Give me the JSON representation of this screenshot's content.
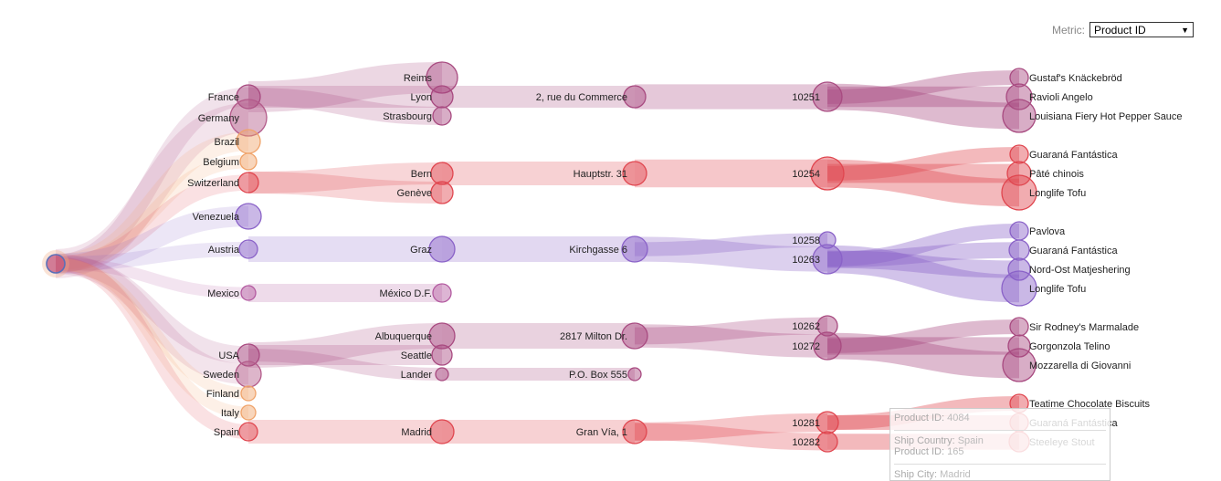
{
  "metric": {
    "label": "Metric:",
    "selected": "Product ID"
  },
  "colors": {
    "purple": "#8a62c8",
    "red": "#e0464f",
    "orange": "#f0a36a",
    "plum": "#a84a80"
  },
  "tree": {
    "countries": [
      {
        "name": "France",
        "color": "#a84a80"
      },
      {
        "name": "Germany",
        "color": "#b35a8a"
      },
      {
        "name": "Brazil",
        "color": "#f0a36a"
      },
      {
        "name": "Belgium",
        "color": "#f0a36a"
      },
      {
        "name": "Switzerland",
        "color": "#e0464f"
      },
      {
        "name": "Venezuela",
        "color": "#8a62c8"
      },
      {
        "name": "Austria",
        "color": "#8a62c8"
      },
      {
        "name": "Mexico",
        "color": "#b35aa0"
      },
      {
        "name": "USA",
        "color": "#a84a80"
      },
      {
        "name": "Sweden",
        "color": "#b35a8a"
      },
      {
        "name": "Finland",
        "color": "#f0a36a"
      },
      {
        "name": "Italy",
        "color": "#f0a36a"
      },
      {
        "name": "Spain",
        "color": "#e0464f"
      }
    ],
    "cities": [
      {
        "name": "Reims",
        "country": "France"
      },
      {
        "name": "Lyon",
        "country": "France"
      },
      {
        "name": "Strasbourg",
        "country": "France"
      },
      {
        "name": "Bern",
        "country": "Switzerland"
      },
      {
        "name": "Genève",
        "country": "Switzerland"
      },
      {
        "name": "Graz",
        "country": "Austria"
      },
      {
        "name": "México D.F.",
        "country": "Mexico"
      },
      {
        "name": "Albuquerque",
        "country": "USA"
      },
      {
        "name": "Seattle",
        "country": "USA"
      },
      {
        "name": "Lander",
        "country": "USA"
      },
      {
        "name": "Madrid",
        "country": "Spain"
      }
    ],
    "addresses": [
      {
        "name": "2, rue du Commerce",
        "city": "Lyon"
      },
      {
        "name": "Hauptstr. 31",
        "city": "Bern"
      },
      {
        "name": "Kirchgasse 6",
        "city": "Graz"
      },
      {
        "name": "2817 Milton Dr.",
        "city": "Albuquerque"
      },
      {
        "name": "P.O. Box 555",
        "city": "Lander"
      },
      {
        "name": "Gran Vía, 1",
        "city": "Madrid"
      }
    ],
    "orders": [
      {
        "name": "10251",
        "address": "2, rue du Commerce"
      },
      {
        "name": "10254",
        "address": "Hauptstr. 31"
      },
      {
        "name": "10258",
        "address": "Kirchgasse 6"
      },
      {
        "name": "10263",
        "address": "Kirchgasse 6"
      },
      {
        "name": "10262",
        "address": "2817 Milton Dr."
      },
      {
        "name": "10272",
        "address": "2817 Milton Dr."
      },
      {
        "name": "10281",
        "address": "Gran Vía, 1"
      },
      {
        "name": "10282",
        "address": "Gran Vía, 1"
      }
    ],
    "products": [
      {
        "name": "Gustaf's Knäckebröd",
        "order": "10251"
      },
      {
        "name": "Ravioli Angelo",
        "order": "10251"
      },
      {
        "name": "Louisiana Fiery Hot Pepper Sauce",
        "order": "10251"
      },
      {
        "name": "Guaraná Fantástica",
        "order": "10254"
      },
      {
        "name": "Pâté chinois",
        "order": "10254"
      },
      {
        "name": "Longlife Tofu",
        "order": "10254"
      },
      {
        "name": "Pavlova",
        "order": "10263"
      },
      {
        "name": "Guaraná Fantástica",
        "order": "10263"
      },
      {
        "name": "Nord-Ost Matjeshering",
        "order": "10263"
      },
      {
        "name": "Longlife Tofu",
        "order": "10263"
      },
      {
        "name": "Sir Rodney's Marmalade",
        "order": "10272"
      },
      {
        "name": "Gorgonzola Telino",
        "order": "10272"
      },
      {
        "name": "Mozzarella di Giovanni",
        "order": "10272"
      },
      {
        "name": "Teatime Chocolate Biscuits",
        "order": "10281"
      },
      {
        "name": "Guaraná Fantástica",
        "order": "10281"
      },
      {
        "name": "Steeleye Stout",
        "order": "10282"
      }
    ]
  },
  "tooltip": {
    "line1_key": "Product ID:",
    "line1_val": "4084",
    "line2_key": "Ship Country:",
    "line2_val": "Spain",
    "line3_key": "Product ID:",
    "line3_val": "165",
    "line4_key": "Ship City:",
    "line4_val": "Madrid"
  }
}
